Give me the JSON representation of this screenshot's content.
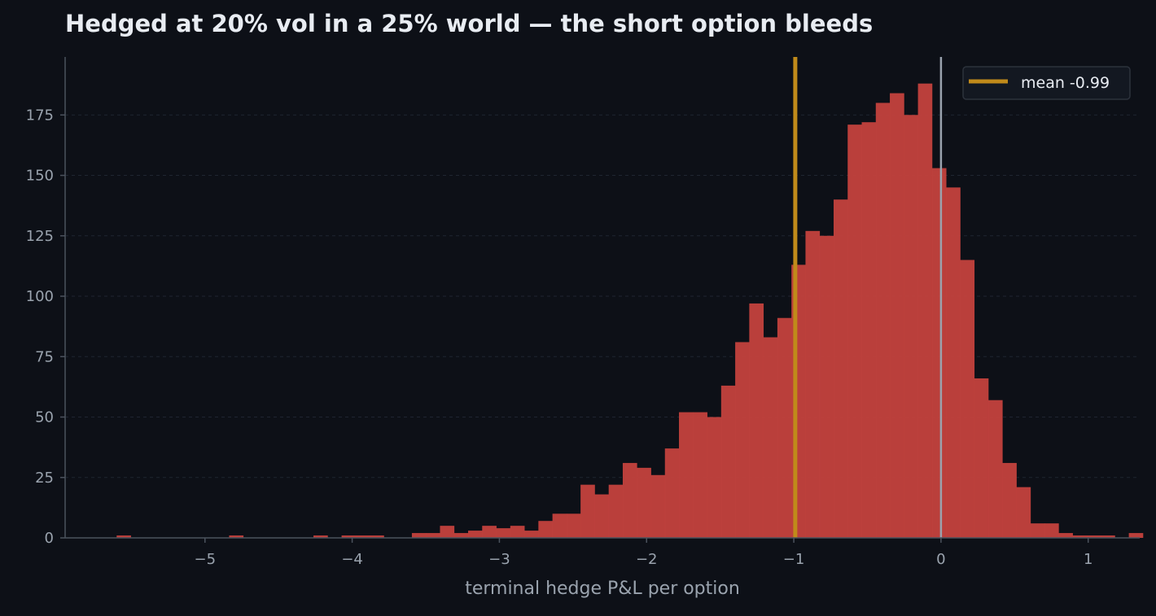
{
  "chart_data": {
    "type": "bar",
    "title": "Hedged at 20% vol in a 25% world — the short option bleeds",
    "xlabel": "terminal hedge P&L per option",
    "ylabel": "",
    "xlim": [
      -5.95,
      1.35
    ],
    "ylim": [
      0,
      199
    ],
    "x_ticks": [
      -5,
      -4,
      -3,
      -2,
      -1,
      0,
      1
    ],
    "y_ticks": [
      0,
      25,
      50,
      75,
      100,
      125,
      150,
      175
    ],
    "bin_start": -5.6,
    "bin_width": 0.0955,
    "counts": [
      1,
      0,
      0,
      0,
      0,
      0,
      0,
      0,
      1,
      0,
      0,
      0,
      0,
      0,
      1,
      0,
      1,
      1,
      1,
      0,
      0,
      2,
      2,
      5,
      2,
      3,
      5,
      4,
      5,
      3,
      7,
      10,
      10,
      22,
      18,
      22,
      31,
      29,
      26,
      37,
      52,
      52,
      50,
      63,
      81,
      97,
      83,
      91,
      113,
      127,
      125,
      140,
      171,
      172,
      180,
      184,
      175,
      188,
      153,
      145,
      115,
      66,
      57,
      31,
      21,
      6,
      6,
      2,
      1,
      1,
      1,
      0,
      2
    ],
    "mean_line": {
      "x": -0.99,
      "label": "mean -0.99"
    },
    "zero_line": {
      "x": 0
    },
    "colors": {
      "bar": "#c0413d",
      "mean_line": "#c08a1a",
      "zero_line": "#9aa3ae",
      "grid": "#1f2531",
      "axis": "#4b525d",
      "background": "#0d1017"
    },
    "grid": true,
    "legend_position": "top-right"
  }
}
